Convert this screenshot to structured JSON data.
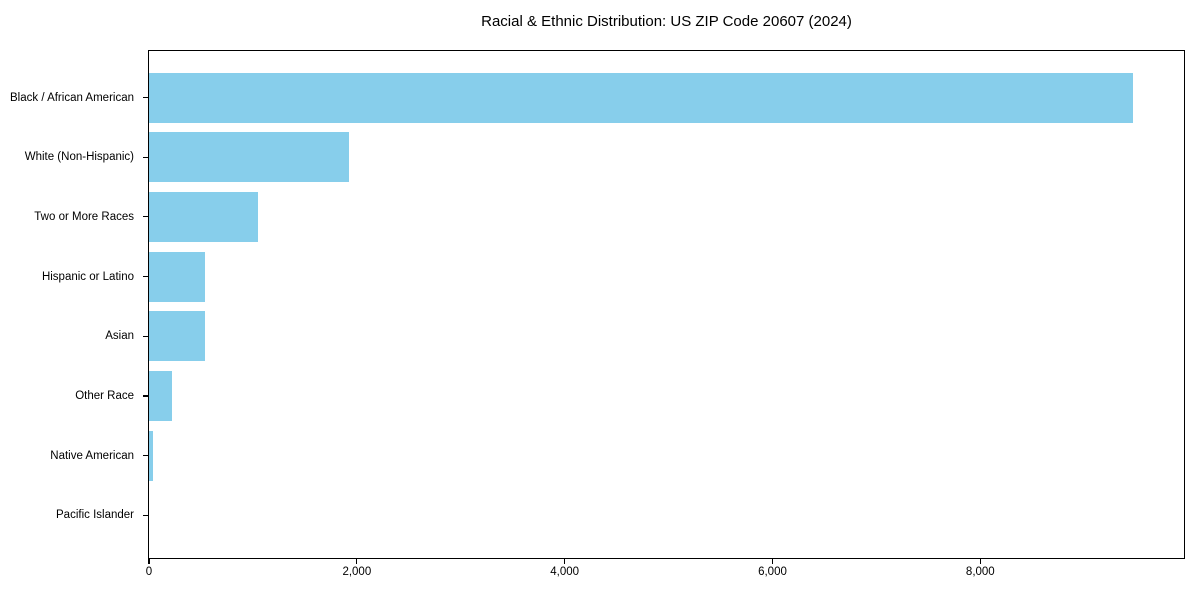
{
  "figure": {
    "background_color": "#ffffff",
    "frame_color": "#000000",
    "text_color": "#000000"
  },
  "chart_data": {
    "type": "bar",
    "orientation": "horizontal",
    "title": "Racial & Ethnic Distribution: US ZIP Code 20607 (2024)",
    "categories": [
      "Black / African American",
      "White (Non-Hispanic)",
      "Two or More Races",
      "Hispanic or Latino",
      "Asian",
      "Other Race",
      "Native American",
      "Pacific Islander"
    ],
    "values": [
      9470,
      1920,
      1045,
      540,
      535,
      218,
      42,
      0
    ],
    "xlabel": "",
    "ylabel": "",
    "xlim": [
      0,
      9960
    ],
    "xticks": [
      {
        "value": 0,
        "label": "0"
      },
      {
        "value": 2000,
        "label": "2,000"
      },
      {
        "value": 4000,
        "label": "4,000"
      },
      {
        "value": 6000,
        "label": "6,000"
      },
      {
        "value": 8000,
        "label": "8,000"
      }
    ],
    "bar_color": "#87CEEB",
    "grid": false,
    "legend": null
  }
}
